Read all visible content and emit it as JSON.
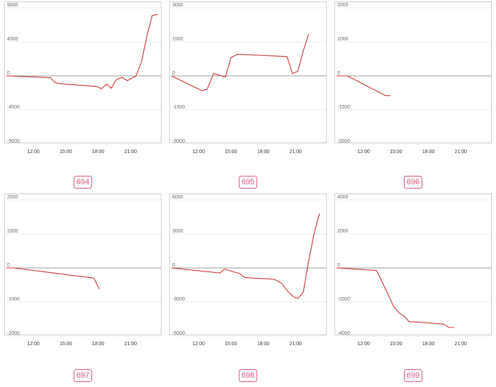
{
  "colors": {
    "line": "#cc3333",
    "zero_line": "#9a9a9a",
    "grid": "#e6e6e6",
    "border": "#cfcfcf",
    "badge": "#d9577a"
  },
  "chart_data": [
    {
      "type": "line",
      "badge": "694",
      "yticks": [
        "9000",
        "4500",
        "0",
        "-4500",
        "-9000"
      ],
      "ylim": [
        -9000,
        9000
      ],
      "xticks": [
        "12:00",
        "15:00",
        "18:00",
        "21:00"
      ],
      "xlim": [
        9.5,
        23.8
      ],
      "x": [
        9.5,
        13.6,
        14.0,
        14.5,
        17.8,
        18.3,
        18.8,
        19.2,
        19.7,
        20.2,
        20.7,
        21.5,
        22.0,
        22.5,
        23.0,
        23.5
      ],
      "y": [
        0,
        -250,
        -900,
        -1050,
        -1400,
        -1700,
        -1100,
        -1650,
        -500,
        -200,
        -650,
        0,
        1800,
        5200,
        8000,
        8100
      ]
    },
    {
      "type": "line",
      "badge": "695",
      "yticks": [
        "3000",
        "1500",
        "0",
        "-1500",
        "-3000"
      ],
      "ylim": [
        -3000,
        3000
      ],
      "xticks": [
        "12:00",
        "15:00",
        "18:00",
        "21:00"
      ],
      "xlim": [
        9.5,
        23.8
      ],
      "x": [
        9.5,
        12.3,
        12.8,
        13.4,
        14.5,
        15.0,
        15.6,
        20.2,
        20.7,
        21.2,
        21.7,
        22.2
      ],
      "y": [
        0,
        -650,
        -600,
        100,
        -50,
        800,
        950,
        850,
        100,
        200,
        1100,
        1850
      ]
    },
    {
      "type": "line",
      "badge": "696",
      "yticks": [
        "2000",
        "1000",
        "0",
        "-1000",
        "-2000"
      ],
      "ylim": [
        -2000,
        2000
      ],
      "xticks": [
        "12:00",
        "15:00",
        "18:00",
        "21:00"
      ],
      "xlim": [
        9.5,
        23.8
      ],
      "x": [
        9.5,
        10.5,
        14.0,
        14.5
      ],
      "y": [
        0,
        0,
        -580,
        -580
      ]
    },
    {
      "type": "line",
      "badge": "697",
      "yticks": [
        "2000",
        "1000",
        "0",
        "-1000",
        "-2000"
      ],
      "ylim": [
        -2000,
        2000
      ],
      "xticks": [
        "12:00",
        "15:00",
        "18:00",
        "21:00"
      ],
      "xlim": [
        9.5,
        23.8
      ],
      "x": [
        9.5,
        10.2,
        17.6,
        18.1
      ],
      "y": [
        0,
        0,
        -300,
        -620
      ]
    },
    {
      "type": "line",
      "badge": "698",
      "yticks": [
        "6000",
        "3000",
        "0",
        "-3000",
        "-6000"
      ],
      "ylim": [
        -6000,
        6000
      ],
      "xticks": [
        "12:00",
        "15:00",
        "18:00",
        "21:00"
      ],
      "xlim": [
        9.5,
        23.8
      ],
      "x": [
        9.5,
        11.5,
        14.0,
        14.4,
        15.8,
        16.3,
        19.0,
        19.7,
        20.3,
        20.8,
        21.2,
        21.7,
        22.2,
        22.7,
        23.2
      ],
      "y": [
        0,
        -200,
        -450,
        -100,
        -500,
        -850,
        -1000,
        -1350,
        -2100,
        -2550,
        -2700,
        -2150,
        600,
        3000,
        4800
      ]
    },
    {
      "type": "line",
      "badge": "699",
      "yticks": [
        "4000",
        "2000",
        "0",
        "-2000",
        "-4000"
      ],
      "ylim": [
        -4000,
        4000
      ],
      "xticks": [
        "12:00",
        "15:00",
        "18:00",
        "21:00"
      ],
      "xlim": [
        9.5,
        23.8
      ],
      "x": [
        9.5,
        13.2,
        13.7,
        14.3,
        14.8,
        15.3,
        15.7,
        16.2,
        19.4,
        19.9,
        20.4
      ],
      "y": [
        0,
        -150,
        -800,
        -1600,
        -2300,
        -2650,
        -2800,
        -3150,
        -3300,
        -3500,
        -3500
      ]
    }
  ]
}
